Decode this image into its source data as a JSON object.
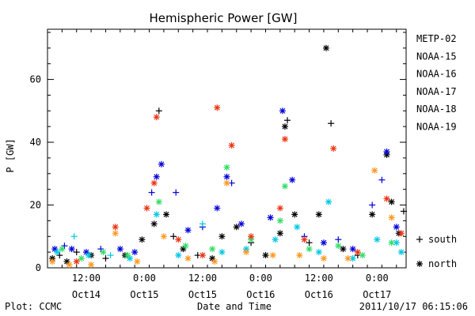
{
  "chart_data": {
    "type": "scatter",
    "title": "Hemispheric Power [GW]",
    "xlabel": "Date and Time",
    "ylabel": "P [GW]",
    "ylim": [
      0,
      76
    ],
    "xlim": [
      "2011-10-14 04:00",
      "2011-10-17 06:00"
    ],
    "yticks": [
      0,
      20,
      40,
      60
    ],
    "xticks": [
      {
        "x": "2011-10-14 12:00",
        "line1": "12:00",
        "line2": "Oct14"
      },
      {
        "x": "2011-10-15 00:00",
        "line1": "0:00",
        "line2": "Oct15"
      },
      {
        "x": "2011-10-15 12:00",
        "line1": "12:00",
        "line2": "Oct15"
      },
      {
        "x": "2011-10-16 00:00",
        "line1": "0:00",
        "line2": "Oct16"
      },
      {
        "x": "2011-10-16 12:00",
        "line1": "12:00",
        "line2": "Oct16"
      },
      {
        "x": "2011-10-17 00:00",
        "line1": "0:00",
        "line2": "Oct17"
      }
    ],
    "grid": false,
    "legend_position": "right",
    "marker_legend": [
      {
        "symbol": "+",
        "label": "south"
      },
      {
        "symbol": "*",
        "label": "north"
      }
    ],
    "series": [
      {
        "name": "METP-02",
        "color": "#000000",
        "points": [
          {
            "x": "2011-10-14 05:00",
            "y": 3,
            "m": "*"
          },
          {
            "x": "2011-10-14 06:30",
            "y": 4,
            "m": "+"
          },
          {
            "x": "2011-10-14 08:00",
            "y": 2,
            "m": "*"
          },
          {
            "x": "2011-10-14 10:00",
            "y": 5,
            "m": "+"
          },
          {
            "x": "2011-10-14 13:00",
            "y": 4,
            "m": "*"
          },
          {
            "x": "2011-10-14 16:00",
            "y": 3,
            "m": "+"
          },
          {
            "x": "2011-10-14 20:00",
            "y": 4,
            "m": "*"
          },
          {
            "x": "2011-10-14 23:30",
            "y": 9,
            "m": "*"
          },
          {
            "x": "2011-10-15 02:00",
            "y": 14,
            "m": "*"
          },
          {
            "x": "2011-10-15 03:00",
            "y": 50,
            "m": "+"
          },
          {
            "x": "2011-10-15 04:30",
            "y": 17,
            "m": "*"
          },
          {
            "x": "2011-10-15 06:00",
            "y": 10,
            "m": "+"
          },
          {
            "x": "2011-10-15 08:00",
            "y": 6,
            "m": "*"
          },
          {
            "x": "2011-10-15 11:00",
            "y": 4,
            "m": "+"
          },
          {
            "x": "2011-10-15 14:00",
            "y": 3,
            "m": "*"
          },
          {
            "x": "2011-10-15 16:00",
            "y": 10,
            "m": "*"
          },
          {
            "x": "2011-10-15 19:00",
            "y": 13,
            "m": "*"
          },
          {
            "x": "2011-10-15 22:00",
            "y": 8,
            "m": "+"
          },
          {
            "x": "2011-10-16 01:00",
            "y": 4,
            "m": "*"
          },
          {
            "x": "2011-10-16 04:00",
            "y": 11,
            "m": "*"
          },
          {
            "x": "2011-10-16 05:00",
            "y": 45,
            "m": "*"
          },
          {
            "x": "2011-10-16 05:30",
            "y": 47,
            "m": "+"
          },
          {
            "x": "2011-10-16 07:00",
            "y": 17,
            "m": "*"
          },
          {
            "x": "2011-10-16 10:00",
            "y": 8,
            "m": "+"
          },
          {
            "x": "2011-10-16 12:00",
            "y": 17,
            "m": "*"
          },
          {
            "x": "2011-10-16 13:30",
            "y": 70,
            "m": "*"
          },
          {
            "x": "2011-10-16 14:30",
            "y": 46,
            "m": "+"
          },
          {
            "x": "2011-10-16 17:00",
            "y": 6,
            "m": "*"
          },
          {
            "x": "2011-10-16 20:00",
            "y": 4,
            "m": "+"
          },
          {
            "x": "2011-10-16 23:00",
            "y": 17,
            "m": "*"
          },
          {
            "x": "2011-10-17 02:00",
            "y": 36,
            "m": "*"
          },
          {
            "x": "2011-10-17 03:00",
            "y": 21,
            "m": "*"
          },
          {
            "x": "2011-10-17 04:30",
            "y": 11,
            "m": "*"
          },
          {
            "x": "2011-10-17 05:30",
            "y": 18,
            "m": "+"
          }
        ]
      },
      {
        "name": "NOAA-15",
        "color": "#0000dd",
        "points": [
          {
            "x": "2011-10-14 05:30",
            "y": 6,
            "m": "*"
          },
          {
            "x": "2011-10-14 07:30",
            "y": 7,
            "m": "+"
          },
          {
            "x": "2011-10-14 09:00",
            "y": 6,
            "m": "*"
          },
          {
            "x": "2011-10-14 12:00",
            "y": 5,
            "m": "*"
          },
          {
            "x": "2011-10-14 15:00",
            "y": 6,
            "m": "+"
          },
          {
            "x": "2011-10-14 19:00",
            "y": 6,
            "m": "*"
          },
          {
            "x": "2011-10-14 22:00",
            "y": 5,
            "m": "*"
          },
          {
            "x": "2011-10-15 01:30",
            "y": 24,
            "m": "+"
          },
          {
            "x": "2011-10-15 02:30",
            "y": 29,
            "m": "*"
          },
          {
            "x": "2011-10-15 03:30",
            "y": 33,
            "m": "*"
          },
          {
            "x": "2011-10-15 06:30",
            "y": 24,
            "m": "+"
          },
          {
            "x": "2011-10-15 09:00",
            "y": 12,
            "m": "*"
          },
          {
            "x": "2011-10-15 12:00",
            "y": 13,
            "m": "+"
          },
          {
            "x": "2011-10-15 15:00",
            "y": 19,
            "m": "*"
          },
          {
            "x": "2011-10-15 17:00",
            "y": 29,
            "m": "*"
          },
          {
            "x": "2011-10-15 18:00",
            "y": 27,
            "m": "+"
          },
          {
            "x": "2011-10-15 20:00",
            "y": 14,
            "m": "*"
          },
          {
            "x": "2011-10-16 02:00",
            "y": 16,
            "m": "*"
          },
          {
            "x": "2011-10-16 04:30",
            "y": 50,
            "m": "*"
          },
          {
            "x": "2011-10-16 06:30",
            "y": 28,
            "m": "*"
          },
          {
            "x": "2011-10-16 09:00",
            "y": 10,
            "m": "+"
          },
          {
            "x": "2011-10-16 13:00",
            "y": 8,
            "m": "*"
          },
          {
            "x": "2011-10-16 16:00",
            "y": 9,
            "m": "+"
          },
          {
            "x": "2011-10-16 19:00",
            "y": 6,
            "m": "*"
          },
          {
            "x": "2011-10-16 23:00",
            "y": 20,
            "m": "+"
          },
          {
            "x": "2011-10-17 01:00",
            "y": 28,
            "m": "+"
          },
          {
            "x": "2011-10-17 02:00",
            "y": 37,
            "m": "*"
          },
          {
            "x": "2011-10-17 04:00",
            "y": 13,
            "m": "*"
          }
        ]
      },
      {
        "name": "NOAA-16",
        "color": "#00c8e6",
        "points": [
          {
            "x": "2011-10-14 06:00",
            "y": 5,
            "m": "*"
          },
          {
            "x": "2011-10-14 09:30",
            "y": 10,
            "m": "+"
          },
          {
            "x": "2011-10-14 12:30",
            "y": 4,
            "m": "*"
          },
          {
            "x": "2011-10-14 17:00",
            "y": 4,
            "m": "+"
          },
          {
            "x": "2011-10-14 21:00",
            "y": 3,
            "m": "*"
          },
          {
            "x": "2011-10-15 02:30",
            "y": 17,
            "m": "*"
          },
          {
            "x": "2011-10-15 07:00",
            "y": 4,
            "m": "*"
          },
          {
            "x": "2011-10-15 12:00",
            "y": 14,
            "m": "+"
          },
          {
            "x": "2011-10-15 16:00",
            "y": 5,
            "m": "*"
          },
          {
            "x": "2011-10-15 21:00",
            "y": 6,
            "m": "*"
          },
          {
            "x": "2011-10-16 03:00",
            "y": 9,
            "m": "*"
          },
          {
            "x": "2011-10-16 07:30",
            "y": 13,
            "m": "*"
          },
          {
            "x": "2011-10-16 12:00",
            "y": 5,
            "m": "*"
          },
          {
            "x": "2011-10-16 14:00",
            "y": 21,
            "m": "*"
          },
          {
            "x": "2011-10-16 19:00",
            "y": 3,
            "m": "*"
          },
          {
            "x": "2011-10-17 00:00",
            "y": 9,
            "m": "*"
          },
          {
            "x": "2011-10-17 04:00",
            "y": 8,
            "m": "*"
          },
          {
            "x": "2011-10-17 05:00",
            "y": 5,
            "m": "*"
          }
        ]
      },
      {
        "name": "NOAA-17",
        "color": "#33dd66",
        "points": [
          {
            "x": "2011-10-14 07:00",
            "y": 6,
            "m": "*"
          },
          {
            "x": "2011-10-14 11:00",
            "y": 3,
            "m": "*"
          },
          {
            "x": "2011-10-14 15:30",
            "y": 5,
            "m": "*"
          },
          {
            "x": "2011-10-14 20:30",
            "y": 4,
            "m": "*"
          },
          {
            "x": "2011-10-15 03:00",
            "y": 21,
            "m": "*"
          },
          {
            "x": "2011-10-15 08:30",
            "y": 7,
            "m": "*"
          },
          {
            "x": "2011-10-15 14:00",
            "y": 6,
            "m": "*"
          },
          {
            "x": "2011-10-15 17:00",
            "y": 32,
            "m": "*"
          },
          {
            "x": "2011-10-15 22:00",
            "y": 9,
            "m": "*"
          },
          {
            "x": "2011-10-16 04:00",
            "y": 15,
            "m": "*"
          },
          {
            "x": "2011-10-16 05:00",
            "y": 26,
            "m": "*"
          },
          {
            "x": "2011-10-16 10:00",
            "y": 6,
            "m": "*"
          },
          {
            "x": "2011-10-16 16:00",
            "y": 7,
            "m": "*"
          },
          {
            "x": "2011-10-16 21:00",
            "y": 4,
            "m": "*"
          },
          {
            "x": "2011-10-17 03:00",
            "y": 8,
            "m": "*"
          }
        ]
      },
      {
        "name": "NOAA-18",
        "color": "#ff9922",
        "points": [
          {
            "x": "2011-10-14 05:00",
            "y": 2,
            "m": "*"
          },
          {
            "x": "2011-10-14 08:30",
            "y": 1,
            "m": "*"
          },
          {
            "x": "2011-10-14 13:00",
            "y": 1,
            "m": "*"
          },
          {
            "x": "2011-10-14 18:00",
            "y": 11,
            "m": "*"
          },
          {
            "x": "2011-10-14 22:30",
            "y": 2,
            "m": "*"
          },
          {
            "x": "2011-10-15 04:00",
            "y": 10,
            "m": "*"
          },
          {
            "x": "2011-10-15 09:00",
            "y": 3,
            "m": "*"
          },
          {
            "x": "2011-10-15 14:30",
            "y": 2,
            "m": "*"
          },
          {
            "x": "2011-10-15 17:00",
            "y": 27,
            "m": "*"
          },
          {
            "x": "2011-10-15 21:00",
            "y": 5,
            "m": "*"
          },
          {
            "x": "2011-10-16 02:30",
            "y": 4,
            "m": "*"
          },
          {
            "x": "2011-10-16 08:00",
            "y": 4,
            "m": "*"
          },
          {
            "x": "2011-10-16 13:00",
            "y": 3,
            "m": "*"
          },
          {
            "x": "2011-10-16 18:00",
            "y": 3,
            "m": "*"
          },
          {
            "x": "2011-10-16 23:30",
            "y": 31,
            "m": "*"
          },
          {
            "x": "2011-10-17 03:00",
            "y": 16,
            "m": "*"
          }
        ]
      },
      {
        "name": "NOAA-19",
        "color": "#ee3311",
        "points": [
          {
            "x": "2011-10-14 10:00",
            "y": 2,
            "m": "*"
          },
          {
            "x": "2011-10-14 18:00",
            "y": 13,
            "m": "*"
          },
          {
            "x": "2011-10-15 00:30",
            "y": 19,
            "m": "*"
          },
          {
            "x": "2011-10-15 02:00",
            "y": 27,
            "m": "*"
          },
          {
            "x": "2011-10-15 02:30",
            "y": 48,
            "m": "*"
          },
          {
            "x": "2011-10-15 07:00",
            "y": 9,
            "m": "*"
          },
          {
            "x": "2011-10-15 12:00",
            "y": 4,
            "m": "*"
          },
          {
            "x": "2011-10-15 15:00",
            "y": 51,
            "m": "*"
          },
          {
            "x": "2011-10-15 18:00",
            "y": 39,
            "m": "*"
          },
          {
            "x": "2011-10-15 22:00",
            "y": 10,
            "m": "*"
          },
          {
            "x": "2011-10-16 04:00",
            "y": 19,
            "m": "*"
          },
          {
            "x": "2011-10-16 05:00",
            "y": 41,
            "m": "*"
          },
          {
            "x": "2011-10-16 09:00",
            "y": 9,
            "m": "*"
          },
          {
            "x": "2011-10-16 15:00",
            "y": 38,
            "m": "*"
          },
          {
            "x": "2011-10-16 20:00",
            "y": 5,
            "m": "*"
          },
          {
            "x": "2011-10-17 02:00",
            "y": 22,
            "m": "*"
          },
          {
            "x": "2011-10-17 05:00",
            "y": 11,
            "m": "*"
          }
        ]
      }
    ]
  },
  "footer": {
    "left": "Plot: CCMC",
    "right": "2011/10/17 06:15:06"
  }
}
